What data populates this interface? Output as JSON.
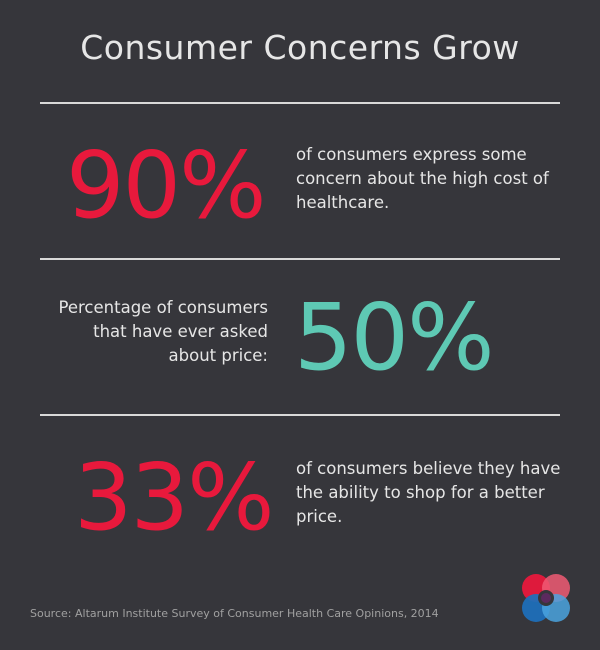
{
  "title": "Consumer Concerns Grow",
  "stats": [
    {
      "value": "90%",
      "lines": [
        "of consumers express some",
        "concern about the high cost of",
        "healthcare."
      ]
    },
    {
      "value": "50%",
      "lines": [
        "Percentage of consumers",
        "that have ever asked",
        "about price:"
      ]
    },
    {
      "value": "33%",
      "lines": [
        "of consumers believe they have",
        "the ability to shop for a better",
        "price."
      ]
    }
  ],
  "source": "Source: Altarum Institute Survey of Consumer Health Care Opinions, 2014",
  "colors": {
    "background": "#36363b",
    "red": "#e8193c",
    "teal": "#5ec9b4",
    "text": "#e6e6e6"
  }
}
